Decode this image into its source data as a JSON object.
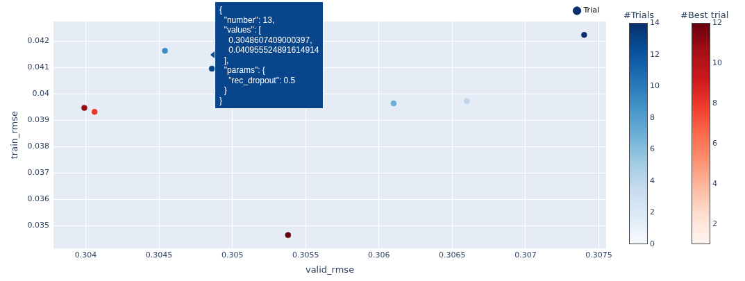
{
  "chart_data": [
    {
      "type": "scatter",
      "xlabel": "valid_rmse",
      "ylabel": "train_rmse",
      "xlim": [
        0.30378,
        0.30755
      ],
      "xticks": [
        0.304,
        0.3045,
        0.305,
        0.3055,
        0.306,
        0.3065,
        0.307,
        0.3075
      ],
      "ylim": [
        0.03413,
        0.04275
      ],
      "yticks": [
        0.035,
        0.036,
        0.037,
        0.038,
        0.039,
        0.04,
        0.041,
        0.042
      ],
      "grid": true,
      "legend": "top",
      "marker": "circle",
      "clabel": "#Trials",
      "clim": [
        0,
        14
      ],
      "cticks": [
        0,
        2,
        4,
        6,
        8,
        10,
        12,
        14
      ],
      "series": [
        {
          "name": "Trial",
          "x": [
            0.30454,
            0.30486,
            0.3061,
            0.3066,
            0.3074
          ],
          "values": [
            0.04164,
            0.04096,
            0.03964,
            0.03973,
            0.04224
          ],
          "cvalues": [
            9,
            13,
            7,
            4,
            14
          ]
        }
      ],
      "annotations": [
        "{\n  \"number\": 13,\n  \"values\": [\n    0.3048607409000397,\n    0.040955524891614914\n  ],\n  \"params\": {\n    \"rec_dropout\": 0.5\n  }\n}"
      ]
    },
    {
      "type": "scatter",
      "xlim": [
        0.30378,
        0.30755
      ],
      "ylim": [
        0.03413,
        0.04275
      ],
      "tick_labels": false,
      "marker": "circle",
      "clabel": "#Best trial",
      "clim": [
        1,
        12
      ],
      "cticks": [
        2,
        4,
        6,
        8,
        10,
        12
      ],
      "series": [
        {
          "x": [
            0.30399,
            0.30406,
            0.30538
          ],
          "values": [
            0.03947,
            0.03932,
            0.03464
          ],
          "cvalues": [
            11,
            8,
            12
          ]
        }
      ]
    }
  ]
}
